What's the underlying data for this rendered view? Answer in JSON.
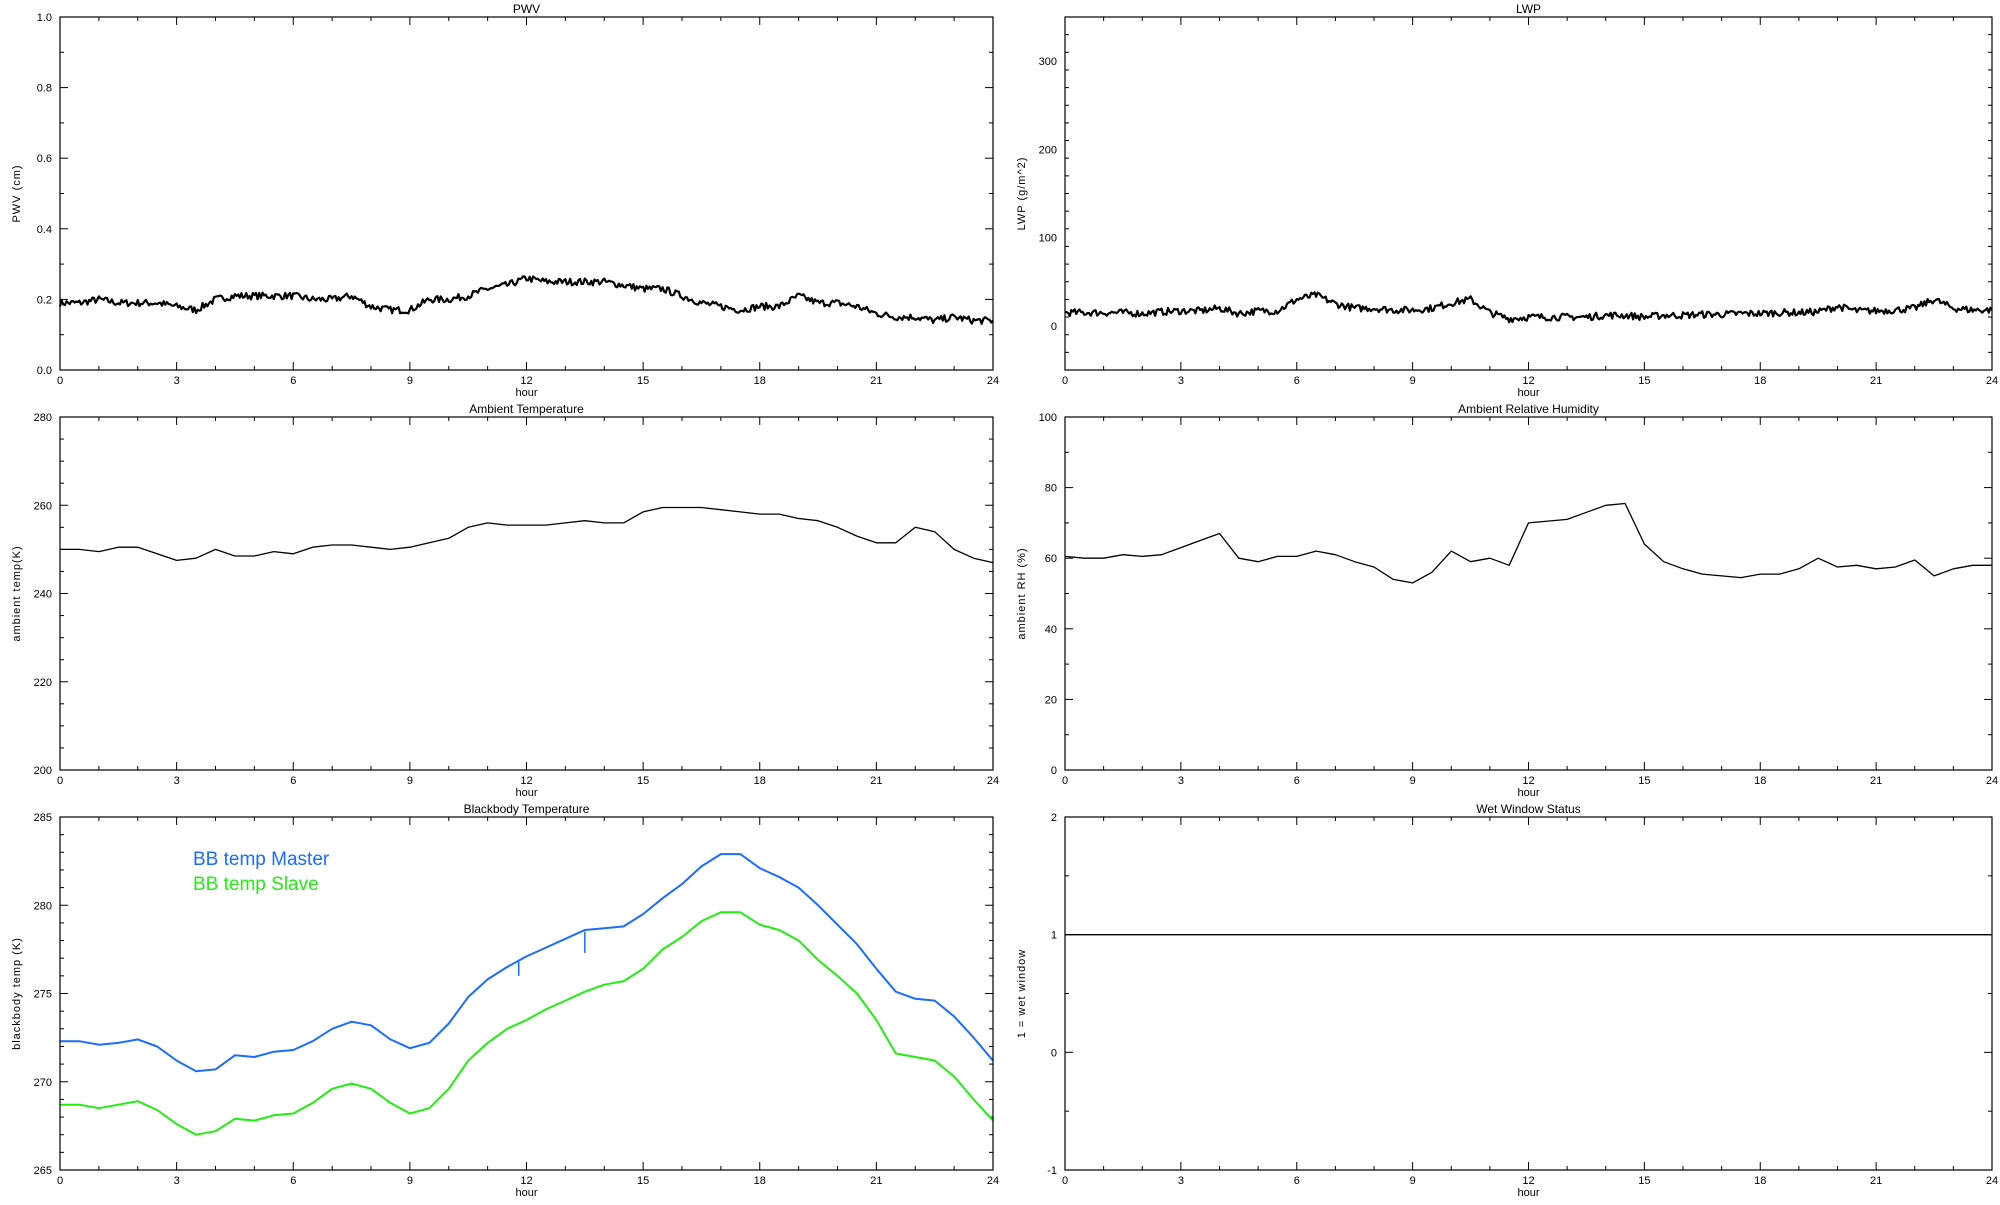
{
  "chart_data": [
    {
      "type": "line",
      "title": "PWV",
      "xlabel": "hour",
      "ylabel": "PWV (cm)",
      "xlim": [
        0,
        24
      ],
      "xticks": [
        0,
        3,
        6,
        9,
        12,
        15,
        18,
        21,
        24
      ],
      "xminor": 1,
      "ylim": [
        0,
        1.0
      ],
      "yticks": [
        "0.0",
        "0.2",
        "0.4",
        "0.6",
        "0.8",
        "1.0"
      ],
      "yminor": 0.1,
      "x": "0 to 24 step 0.5",
      "series": [
        {
          "name": "PWV",
          "color": "#000000",
          "noisy": true,
          "values": [
            0.19,
            0.19,
            0.2,
            0.19,
            0.19,
            0.19,
            0.18,
            0.17,
            0.2,
            0.21,
            0.21,
            0.21,
            0.21,
            0.2,
            0.2,
            0.21,
            0.18,
            0.17,
            0.17,
            0.2,
            0.2,
            0.21,
            0.23,
            0.24,
            0.26,
            0.25,
            0.25,
            0.25,
            0.25,
            0.24,
            0.23,
            0.23,
            0.21,
            0.19,
            0.18,
            0.17,
            0.18,
            0.18,
            0.21,
            0.19,
            0.19,
            0.18,
            0.16,
            0.15,
            0.15,
            0.14,
            0.15,
            0.14,
            0.14
          ]
        }
      ]
    },
    {
      "type": "line",
      "title": "LWP",
      "xlabel": "hour",
      "ylabel": "LWP (g/m^2)",
      "xlim": [
        0,
        24
      ],
      "xticks": [
        0,
        3,
        6,
        9,
        12,
        15,
        18,
        21,
        24
      ],
      "xminor": 1,
      "ylim": [
        -50,
        350
      ],
      "yticks": [
        "0",
        "100",
        "200",
        "300"
      ],
      "yminor": 20,
      "series": [
        {
          "name": "LWP",
          "color": "#000000",
          "noisy": true,
          "values": [
            15,
            15,
            15,
            15,
            14,
            16,
            17,
            17,
            20,
            14,
            17,
            17,
            30,
            35,
            25,
            20,
            20,
            18,
            18,
            20,
            26,
            30,
            15,
            8,
            10,
            10,
            10,
            10,
            12,
            12,
            10,
            12,
            12,
            13,
            13,
            14,
            14,
            15,
            15,
            16,
            22,
            17,
            17,
            18,
            20,
            30,
            20,
            18,
            18
          ]
        }
      ]
    },
    {
      "type": "line",
      "title": "Ambient Temperature",
      "xlabel": "hour",
      "ylabel": "ambient temp(K)",
      "xlim": [
        0,
        24
      ],
      "xticks": [
        0,
        3,
        6,
        9,
        12,
        15,
        18,
        21,
        24
      ],
      "xminor": 1,
      "ylim": [
        200,
        280
      ],
      "yticks": [
        "200",
        "220",
        "240",
        "260",
        "280"
      ],
      "yminor": 5,
      "series": [
        {
          "name": "ambient temp",
          "color": "#000000",
          "noisy": false,
          "values": [
            250,
            250,
            249.5,
            250.5,
            250.5,
            249,
            247.5,
            248,
            250,
            248.5,
            248.5,
            249.5,
            249,
            250.5,
            251,
            251,
            250.5,
            250,
            250.5,
            251.5,
            252.5,
            255,
            256,
            255.5,
            255.5,
            255.5,
            256,
            256.5,
            256,
            256,
            258.5,
            259.5,
            259.5,
            259.5,
            259,
            258.5,
            258,
            258,
            257,
            256.5,
            255,
            253,
            251.5,
            251.5,
            255,
            254,
            250,
            248,
            247
          ]
        }
      ]
    },
    {
      "type": "line",
      "title": "Ambient Relative Humidity",
      "xlabel": "hour",
      "ylabel": "ambient RH (%)",
      "xlim": [
        0,
        24
      ],
      "xticks": [
        0,
        3,
        6,
        9,
        12,
        15,
        18,
        21,
        24
      ],
      "xminor": 1,
      "ylim": [
        0,
        100
      ],
      "yticks": [
        "0",
        "20",
        "40",
        "60",
        "80",
        "100"
      ],
      "yminor": 10,
      "series": [
        {
          "name": "ambient RH",
          "color": "#000000",
          "noisy": false,
          "values": [
            60.5,
            60,
            60,
            61,
            60.5,
            61,
            63,
            65,
            67,
            60,
            59,
            60.5,
            60.5,
            62,
            61,
            59,
            57.5,
            54,
            53,
            56,
            62,
            59,
            60,
            58,
            70,
            70.5,
            71,
            73,
            75,
            75.5,
            64,
            59,
            57,
            55.5,
            55,
            54.5,
            55.5,
            55.5,
            57,
            60,
            57.5,
            58,
            57,
            57.5,
            59.5,
            55,
            57,
            58,
            58
          ]
        }
      ]
    },
    {
      "type": "line",
      "title": "Blackbody Temperature",
      "xlabel": "hour",
      "ylabel": "blackbody temp (K)",
      "xlim": [
        0,
        24
      ],
      "xticks": [
        0,
        3,
        6,
        9,
        12,
        15,
        18,
        21,
        24
      ],
      "xminor": 1,
      "ylim": [
        265,
        285
      ],
      "yticks": [
        "265",
        "270",
        "275",
        "280",
        "285"
      ],
      "yminor": 1,
      "legend": "top-left",
      "series": [
        {
          "name": "BB temp Master",
          "color": "#1a6dff",
          "noisy": false,
          "values": [
            272.3,
            272.3,
            272.1,
            272.2,
            272.4,
            272.0,
            271.2,
            270.6,
            270.7,
            271.5,
            271.4,
            271.7,
            271.8,
            272.3,
            273.0,
            273.4,
            273.2,
            272.4,
            271.9,
            272.2,
            273.3,
            274.8,
            275.8,
            276.5,
            277.1,
            277.6,
            278.1,
            278.6,
            278.7,
            278.8,
            279.5,
            280.4,
            281.2,
            282.2,
            282.9,
            282.9,
            282.1,
            281.6,
            281.0,
            280.0,
            278.9,
            277.8,
            276.4,
            275.1,
            274.7,
            274.6,
            273.7,
            272.5,
            271.2
          ],
          "spikes": [
            [
              11.8,
              276.8,
              276.0
            ],
            [
              13.5,
              278.5,
              277.3
            ]
          ]
        },
        {
          "name": "BB temp Slave",
          "color": "#22ee11",
          "noisy": false,
          "values": [
            268.7,
            268.7,
            268.5,
            268.7,
            268.9,
            268.4,
            267.6,
            267.0,
            267.2,
            267.9,
            267.8,
            268.1,
            268.2,
            268.8,
            269.6,
            269.9,
            269.6,
            268.8,
            268.2,
            268.5,
            269.6,
            271.2,
            272.2,
            273.0,
            273.5,
            274.1,
            274.6,
            275.1,
            275.5,
            275.7,
            276.4,
            277.5,
            278.2,
            279.1,
            279.6,
            279.6,
            278.9,
            278.6,
            278.0,
            276.9,
            276.0,
            275.0,
            273.5,
            271.6,
            271.4,
            271.2,
            270.3,
            269.0,
            267.8
          ]
        }
      ]
    },
    {
      "type": "line",
      "title": "Wet Window Status",
      "xlabel": "hour",
      "ylabel": "1 = wet window",
      "xlim": [
        0,
        24
      ],
      "xticks": [
        0,
        3,
        6,
        9,
        12,
        15,
        18,
        21,
        24
      ],
      "xminor": 1,
      "ylim": [
        -1,
        2
      ],
      "yticks": [
        "-1",
        "0",
        "1",
        "2"
      ],
      "yminor": 0.5,
      "series": [
        {
          "name": "wet window",
          "color": "#000000",
          "noisy": false,
          "values": [
            1,
            1,
            1,
            1,
            1,
            1,
            1,
            1,
            1,
            1,
            1,
            1,
            1,
            1,
            1,
            1,
            1,
            1,
            1,
            1,
            1,
            1,
            1,
            1,
            1,
            1,
            1,
            1,
            1,
            1,
            1,
            1,
            1,
            1,
            1,
            1,
            1,
            1,
            1,
            1,
            1,
            1,
            1,
            1,
            1,
            1,
            1,
            1,
            1
          ]
        }
      ]
    }
  ]
}
